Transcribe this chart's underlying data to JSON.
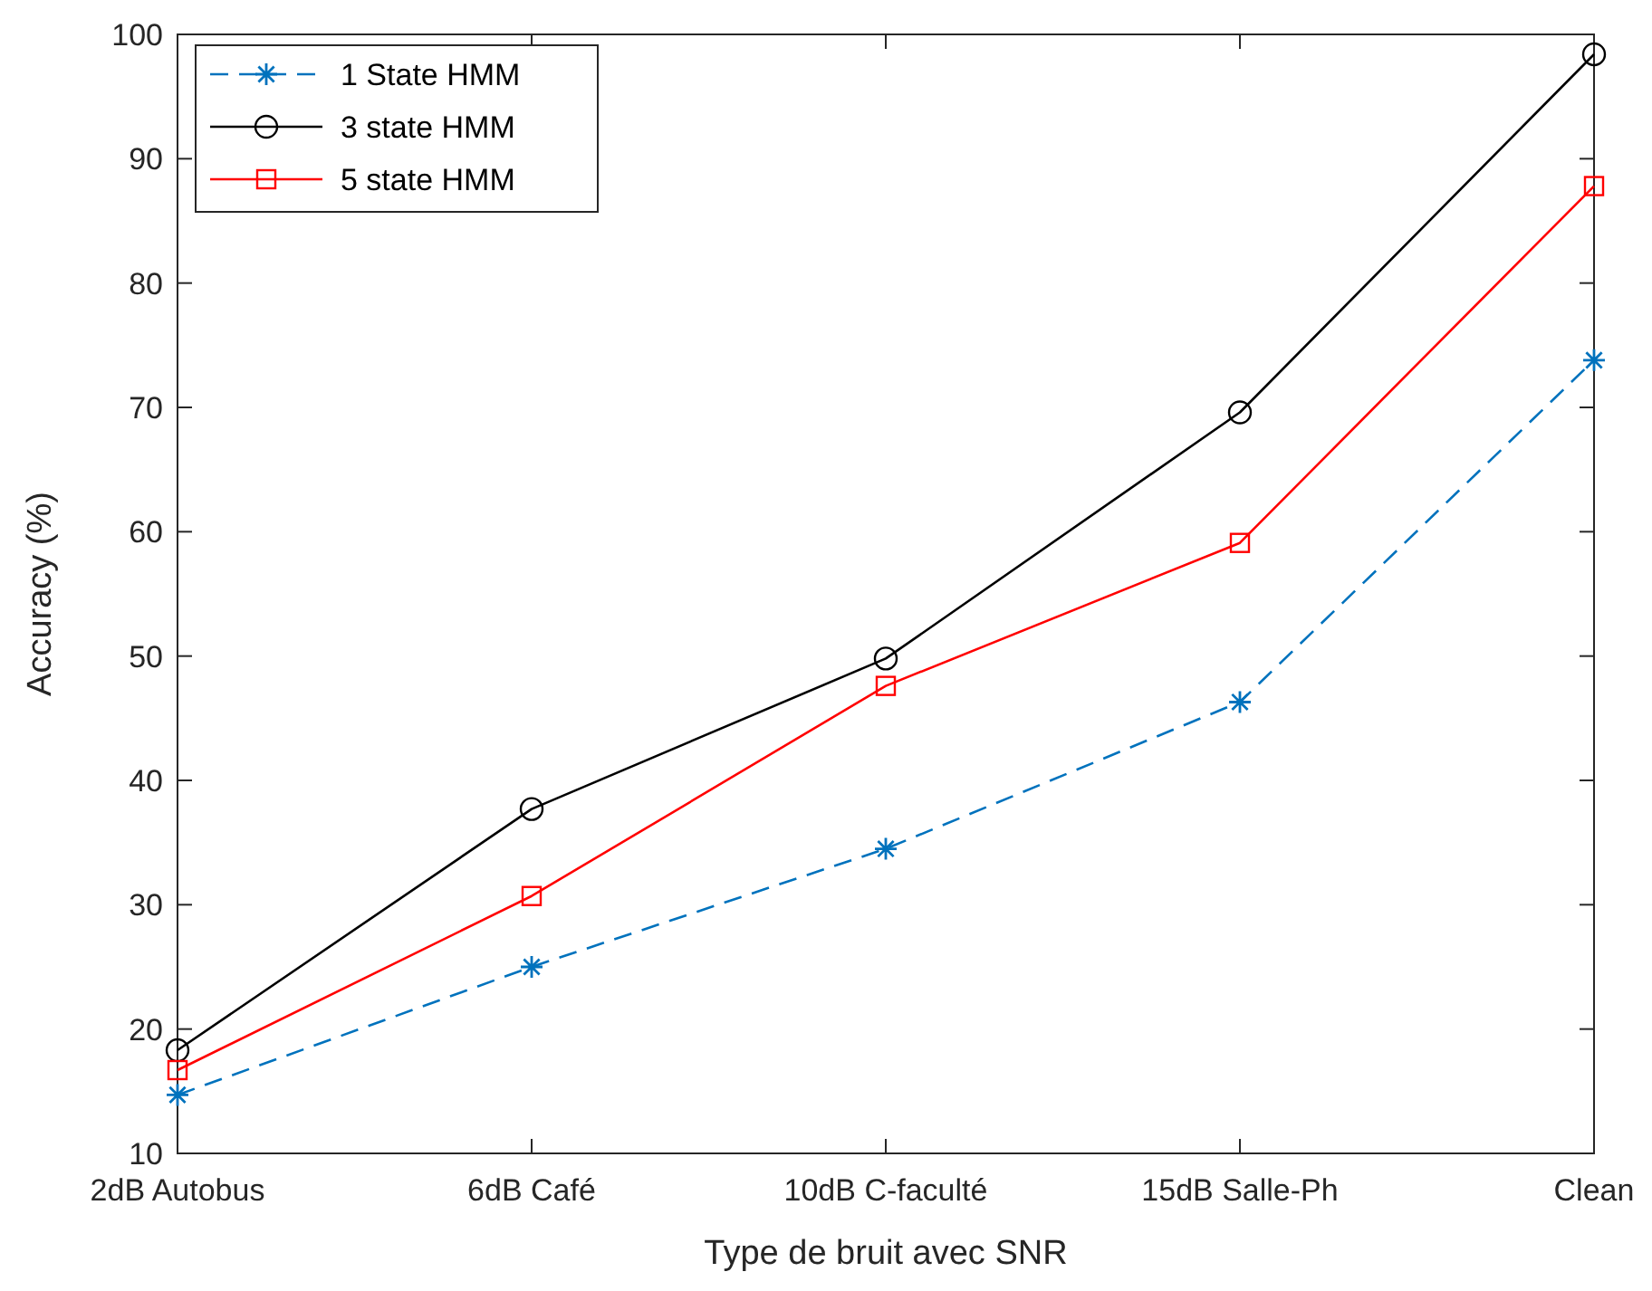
{
  "chart_data": {
    "type": "line",
    "xlabel": "Type de bruit avec SNR",
    "ylabel": "Accuracy (%)",
    "categories": [
      "2dB Autobus",
      "6dB Café",
      "10dB C-faculté",
      "15dB Salle-Ph",
      "Clean"
    ],
    "ylim": [
      10,
      100
    ],
    "yticks": [
      10,
      20,
      30,
      40,
      50,
      60,
      70,
      80,
      90,
      100
    ],
    "grid": false,
    "legend": "top left",
    "series": [
      {
        "name": "1 State HMM",
        "color": "#0072bd",
        "values": [
          14.7,
          25,
          34.5,
          46.3,
          73.8
        ],
        "marker": "cross",
        "line_style": "dashed"
      },
      {
        "name": "3 state HMM",
        "color": "#000000",
        "values": [
          18.3,
          37.7,
          49.8,
          69.6,
          98.4
        ],
        "marker": "circle",
        "line_style": "solid"
      },
      {
        "name": "5 state HMM",
        "color": "#ff0000",
        "values": [
          16.7,
          30.7,
          47.6,
          59.1,
          87.8
        ],
        "marker": "square",
        "line_style": "solid"
      }
    ]
  }
}
